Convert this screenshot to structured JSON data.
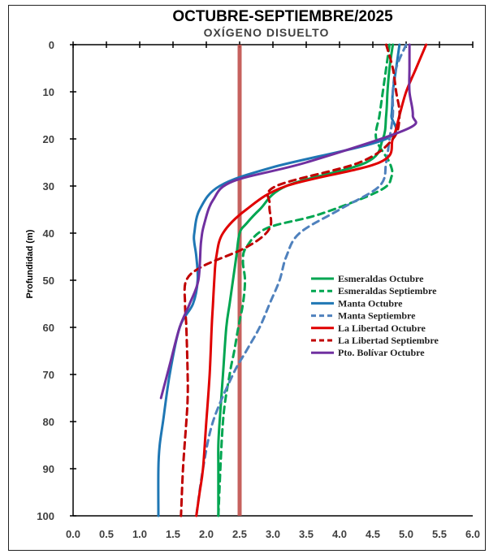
{
  "chart_data": {
    "type": "line",
    "title": "OCTUBRE-SEPTIEMBRE/2025",
    "subtitle": "OXÍGENO DISUELTO",
    "xlabel": "",
    "ylabel": "Profundidad (m)",
    "xlim": [
      0,
      6
    ],
    "ylim": [
      0,
      100
    ],
    "y_inverted": true,
    "x_axis_position": "bottom",
    "grid": false,
    "legend_position": "center-right",
    "x_ticks": [
      "0.0",
      "0.5",
      "1.0",
      "1.5",
      "2.0",
      "2.5",
      "3.0",
      "3.5",
      "4.0",
      "4.5",
      "5.0",
      "5.5",
      "6.0"
    ],
    "y_ticks": [
      "0",
      "10",
      "20",
      "30",
      "40",
      "50",
      "60",
      "70",
      "80",
      "90",
      "100"
    ],
    "reference_line": {
      "x": 2.5,
      "color": "#c0504d"
    },
    "series": [
      {
        "name": "Esmeraldas Octubre",
        "color": "#00a651",
        "dash": "solid",
        "x": [
          4.8,
          4.75,
          4.72,
          4.7,
          4.65,
          4.4,
          3.2,
          2.8,
          2.6,
          2.5,
          2.45,
          2.4,
          2.35,
          2.3,
          2.25,
          2.2,
          2.18,
          2.18,
          2.18
        ],
        "y": [
          0,
          5,
          10,
          15,
          20,
          25,
          30,
          35,
          38,
          40,
          45,
          50,
          55,
          60,
          70,
          80,
          85,
          90,
          100
        ]
      },
      {
        "name": "Esmeraldas Septiembre",
        "color": "#00a651",
        "dash": "dashed",
        "x": [
          4.75,
          4.7,
          4.65,
          4.6,
          4.55,
          4.75,
          4.78,
          4.6,
          3.7,
          2.9,
          2.6,
          2.55,
          2.58,
          2.55,
          2.48,
          2.42,
          2.35,
          2.25,
          2.18
        ],
        "y": [
          0,
          5,
          10,
          15,
          20,
          25,
          28,
          31,
          36,
          39,
          43,
          46,
          50,
          55,
          60,
          65,
          70,
          80,
          100
        ]
      },
      {
        "name": "Manta Octubre",
        "color": "#1f77b4",
        "dash": "solid",
        "x": [
          4.9,
          4.85,
          4.8,
          4.78,
          4.7,
          3.0,
          2.2,
          1.9,
          1.82,
          1.82,
          1.85,
          1.87,
          1.8,
          1.6,
          1.45,
          1.35,
          1.3,
          1.28,
          1.28
        ],
        "y": [
          0,
          5,
          10,
          15,
          20,
          26,
          30,
          35,
          40,
          42,
          45,
          50,
          55,
          60,
          70,
          80,
          85,
          90,
          100
        ]
      },
      {
        "name": "Manta Septiembre",
        "color": "#4f81bd",
        "dash": "dashed",
        "x": [
          5.0,
          4.85,
          4.8,
          4.8,
          4.75,
          4.7,
          4.6,
          4.0,
          3.4,
          3.2,
          3.1,
          2.95,
          2.8,
          2.6,
          2.4,
          2.1,
          1.95,
          1.85
        ],
        "y": [
          0,
          5,
          10,
          15,
          20,
          25,
          30,
          35,
          40,
          45,
          50,
          55,
          60,
          65,
          70,
          80,
          90,
          100
        ]
      },
      {
        "name": "La Libertad Octubre",
        "color": "#e00000",
        "dash": "solid",
        "x": [
          5.3,
          5.15,
          5.0,
          4.9,
          4.8,
          4.6,
          3.2,
          2.6,
          2.25,
          2.15,
          2.12,
          2.1,
          2.08,
          2.05,
          2.0,
          1.95,
          1.9,
          1.85
        ],
        "y": [
          0,
          5,
          10,
          15,
          20,
          25,
          30,
          35,
          40,
          45,
          50,
          55,
          60,
          70,
          80,
          90,
          95,
          100
        ]
      },
      {
        "name": "La Libertad Septiembre",
        "color": "#c00000",
        "dash": "dashed",
        "x": [
          4.7,
          4.8,
          4.85,
          4.9,
          4.8,
          4.3,
          3.05,
          2.95,
          2.95,
          2.6,
          1.95,
          1.7,
          1.68,
          1.7,
          1.72,
          1.72,
          1.7,
          1.65,
          1.62
        ],
        "y": [
          0,
          5,
          10,
          15,
          20,
          25,
          30,
          34,
          39,
          43,
          47,
          50,
          55,
          60,
          70,
          75,
          80,
          90,
          100
        ]
      },
      {
        "name": "Pto. Bolívar Octubre",
        "color": "#7030a0",
        "dash": "solid",
        "x": [
          5.05,
          5.05,
          5.05,
          5.1,
          5.0,
          3.5,
          2.4,
          2.1,
          1.97,
          1.92,
          1.88,
          1.75,
          1.6,
          1.45,
          1.32
        ],
        "y": [
          0,
          5,
          10,
          15,
          18,
          25,
          29,
          33,
          38,
          42,
          50,
          55,
          60,
          68,
          75
        ]
      }
    ]
  }
}
